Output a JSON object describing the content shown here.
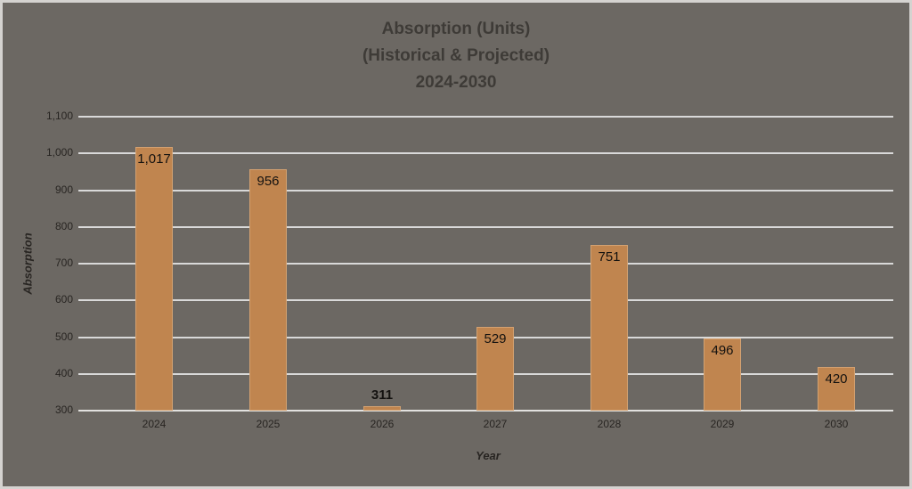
{
  "colors": {
    "background": "#6C6863",
    "frame_border": "#D5D3D0",
    "gridline": "#D9D9D9",
    "axis_line": "#E2E1DF",
    "bar_fill": "#C0854F",
    "bar_border": "#D3A171",
    "title_text": "#3E3B37",
    "tick_text": "#282522",
    "value_label_text": "#141210"
  },
  "chart_data": {
    "type": "bar",
    "title": "Absorption (Units) (Historical & Projected) 2024-2030",
    "title_lines": [
      "Absorption (Units)",
      "(Historical & Projected)",
      "2024-2030"
    ],
    "categories": [
      "2024",
      "2025",
      "2026",
      "2027",
      "2028",
      "2029",
      "2030"
    ],
    "values": [
      1017,
      956,
      311,
      529,
      751,
      496,
      420
    ],
    "value_labels": [
      "1,017",
      "956",
      "311",
      "529",
      "751",
      "496",
      "420"
    ],
    "label_placements": [
      "inside",
      "inside",
      "outside",
      "inside",
      "inside",
      "inside",
      "inside"
    ],
    "label_bold": [
      false,
      false,
      true,
      false,
      false,
      false,
      false
    ],
    "xlabel": "Year",
    "ylabel": "Absorption",
    "ylim": [
      300,
      1100
    ],
    "ytick_step": 100,
    "ytick_labels": [
      "1,100",
      "1,000",
      "900",
      "800",
      "700",
      "600",
      "500",
      "400",
      "300"
    ],
    "grid": true,
    "legend": false
  }
}
